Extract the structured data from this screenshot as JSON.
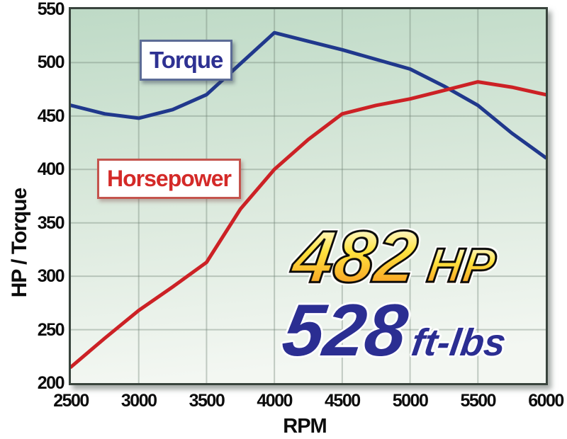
{
  "page": {
    "background": "#ffffff"
  },
  "chart_data": {
    "type": "line",
    "title": "",
    "xlabel": "RPM",
    "ylabel": "HP / Torque",
    "xlim": [
      2500,
      6000
    ],
    "ylim": [
      200,
      550
    ],
    "x_ticks": [
      2500,
      3000,
      3500,
      4000,
      4500,
      5000,
      5500,
      6000
    ],
    "y_ticks": [
      200,
      250,
      300,
      350,
      400,
      450,
      500,
      550
    ],
    "grid": true,
    "legend_position": "floating-boxes-inside-plot",
    "plot_bg_gradient": [
      "#bedac6",
      "#d9e8db",
      "#f3f7f2"
    ],
    "grid_color": "rgba(110,130,115,0.38)",
    "x": [
      2500,
      2750,
      3000,
      3250,
      3500,
      3750,
      4000,
      4250,
      4500,
      4750,
      5000,
      5250,
      5500,
      5750,
      6000
    ],
    "series": [
      {
        "name": "Torque",
        "color": "#20388c",
        "values": [
          460,
          452,
          448,
          456,
          470,
          499,
          528,
          520,
          512,
          503,
          494,
          478,
          460,
          434,
          411
        ]
      },
      {
        "name": "Horsepower",
        "color": "#cc2125",
        "values": [
          215,
          242,
          268,
          290,
          313,
          363,
          400,
          428,
          452,
          460,
          466,
          474,
          482,
          477,
          470
        ]
      }
    ],
    "peak_hp": 482,
    "peak_torque": 528
  },
  "labels": {
    "torque_tag": "Torque",
    "horsepower_tag": "Horsepower",
    "y_axis_title": "HP / Torque",
    "x_axis_title": "RPM"
  },
  "callouts": {
    "hp_value": "482",
    "hp_unit": "HP",
    "torque_value": "528",
    "torque_unit": "ft-lbs",
    "hp_text_gradient": [
      "#fffdf0",
      "#ffe23e",
      "#f7941d"
    ],
    "torque_text_color": "#2b2e92"
  }
}
